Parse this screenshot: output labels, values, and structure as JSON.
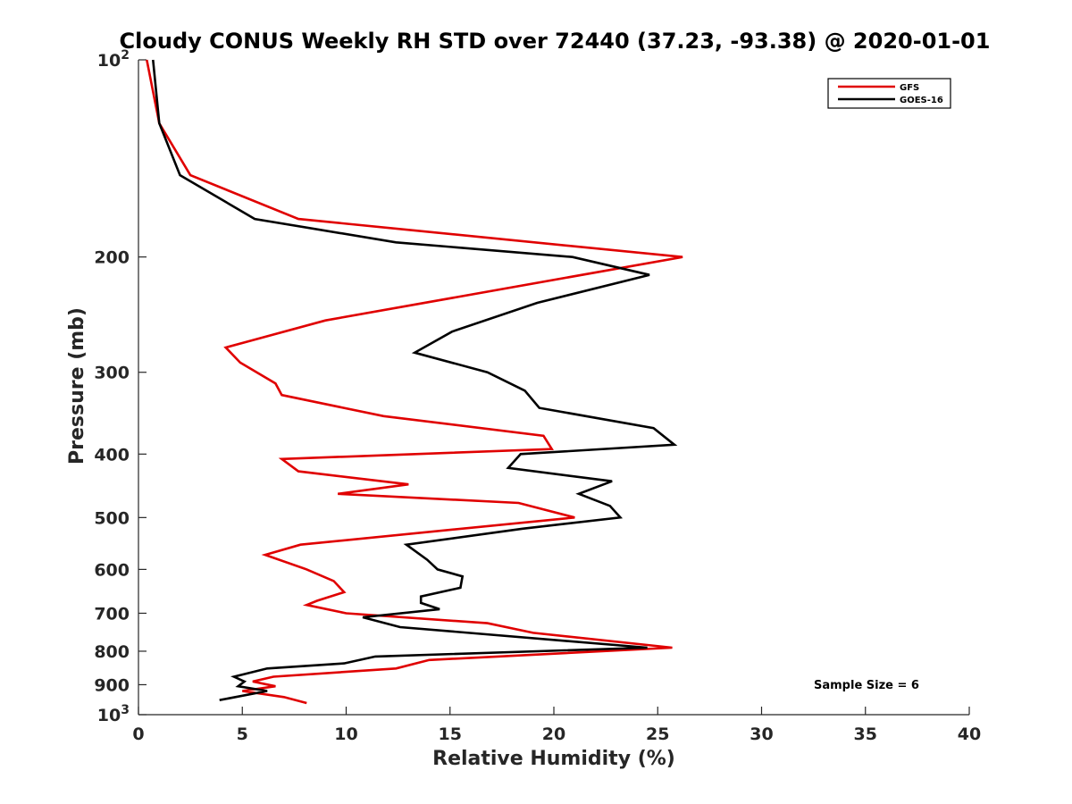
{
  "chart_data": {
    "type": "line",
    "title": "Cloudy CONUS Weekly RH STD over 72440 (37.23, -93.38) @ 2020-01-01",
    "xlabel": "Relative Humidity (%)",
    "ylabel": "Pressure (mb)",
    "xlim": [
      0,
      40
    ],
    "ylim": [
      100,
      1000
    ],
    "y_scale": "log",
    "y_reversed": true,
    "x_ticks": [
      "0",
      "5",
      "10",
      "15",
      "20",
      "25",
      "30",
      "35",
      "40"
    ],
    "y_ticks": [
      {
        "value": 100,
        "base": "10",
        "exp": "2"
      },
      {
        "value": 200,
        "label": "200"
      },
      {
        "value": 300,
        "label": "300"
      },
      {
        "value": 400,
        "label": "400"
      },
      {
        "value": 500,
        "label": "500"
      },
      {
        "value": 600,
        "label": "600"
      },
      {
        "value": 700,
        "label": "700"
      },
      {
        "value": 800,
        "label": "800"
      },
      {
        "value": 900,
        "label": "900"
      },
      {
        "value": 1000,
        "base": "10",
        "exp": "3"
      }
    ],
    "legend_position": "top-right",
    "grid": false,
    "series": [
      {
        "name": "GFS",
        "color": "#e00000",
        "points": [
          [
            0.4,
            100
          ],
          [
            1.0,
            125
          ],
          [
            2.5,
            150
          ],
          [
            7.7,
            175
          ],
          [
            26.2,
            200
          ],
          [
            9.0,
            250
          ],
          [
            4.2,
            275
          ],
          [
            4.9,
            290
          ],
          [
            6.6,
            312
          ],
          [
            6.9,
            325
          ],
          [
            11.8,
            350
          ],
          [
            19.5,
            375
          ],
          [
            19.9,
            393
          ],
          [
            6.9,
            407
          ],
          [
            7.7,
            425
          ],
          [
            13.0,
            445
          ],
          [
            9.6,
            460
          ],
          [
            18.3,
            475
          ],
          [
            21.0,
            500
          ],
          [
            7.8,
            550
          ],
          [
            6.1,
            570
          ],
          [
            8.1,
            600
          ],
          [
            9.4,
            625
          ],
          [
            9.9,
            650
          ],
          [
            8.6,
            670
          ],
          [
            8.1,
            680
          ],
          [
            10.0,
            700
          ],
          [
            16.8,
            725
          ],
          [
            19.0,
            750
          ],
          [
            25.7,
            790
          ],
          [
            14.0,
            825
          ],
          [
            12.4,
            850
          ],
          [
            6.5,
            875
          ],
          [
            5.5,
            890
          ],
          [
            6.6,
            905
          ],
          [
            5.0,
            920
          ],
          [
            7.0,
            940
          ],
          [
            8.1,
            960
          ]
        ]
      },
      {
        "name": "GOES-16",
        "color": "#000000",
        "points": [
          [
            0.7,
            100
          ],
          [
            1.0,
            125
          ],
          [
            2.0,
            150
          ],
          [
            5.6,
            175
          ],
          [
            12.4,
            190
          ],
          [
            20.9,
            200
          ],
          [
            24.6,
            213
          ],
          [
            19.2,
            235
          ],
          [
            15.1,
            260
          ],
          [
            13.3,
            280
          ],
          [
            16.8,
            300
          ],
          [
            18.6,
            320
          ],
          [
            19.3,
            340
          ],
          [
            24.8,
            365
          ],
          [
            25.8,
            387
          ],
          [
            18.4,
            400
          ],
          [
            17.8,
            420
          ],
          [
            22.8,
            440
          ],
          [
            21.2,
            460
          ],
          [
            22.7,
            480
          ],
          [
            23.2,
            500
          ],
          [
            18.5,
            520
          ],
          [
            12.9,
            550
          ],
          [
            13.9,
            580
          ],
          [
            14.4,
            600
          ],
          [
            15.6,
            615
          ],
          [
            15.5,
            640
          ],
          [
            13.6,
            660
          ],
          [
            13.6,
            675
          ],
          [
            14.5,
            690
          ],
          [
            10.8,
            710
          ],
          [
            12.6,
            735
          ],
          [
            24.5,
            790
          ],
          [
            11.4,
            815
          ],
          [
            9.9,
            835
          ],
          [
            6.2,
            850
          ],
          [
            4.6,
            875
          ],
          [
            5.1,
            890
          ],
          [
            4.8,
            905
          ],
          [
            6.2,
            920
          ],
          [
            3.9,
            950
          ]
        ]
      }
    ],
    "annotations": [
      "Sample Size = 6"
    ]
  }
}
